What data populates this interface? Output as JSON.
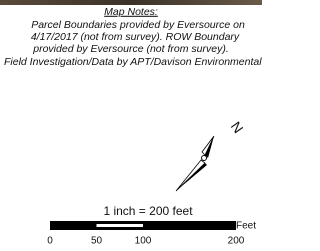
{
  "notes": {
    "heading": "Map Notes:",
    "lines": [
      "Parcel Boundaries provided by Eversource on",
      "4/17/2017 (not from survey). ROW Boundary",
      "provided by Eversource (not from survey).",
      "Field Investigation/Data by APT/Davison Environmental"
    ]
  },
  "north_label": "N",
  "scale": {
    "caption": "1 inch = 200 feet",
    "unit": "Feet",
    "ticks": [
      0,
      50,
      100,
      200
    ]
  }
}
